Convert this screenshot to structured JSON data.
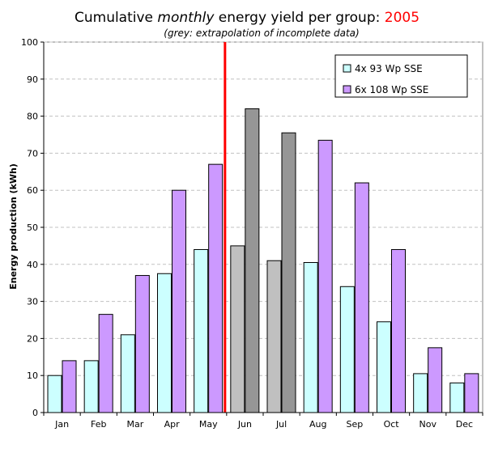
{
  "colors": {
    "series1_fill": "#ccffff",
    "series2_fill": "#cc99ff",
    "extrap1_fill": "#c0c0c0",
    "extrap2_fill": "#969696",
    "marker_line": "#ff0000",
    "year_text": "#ff0000",
    "grid": "#c0c0c0"
  },
  "chart_data": {
    "type": "bar",
    "title_prefix": "Cumulative ",
    "title_italic": "monthly",
    "title_suffix": " energy yield per group: ",
    "title_year": "2005",
    "subtitle": "(grey: extrapolation of incomplete data)",
    "xlabel": "",
    "ylabel": "Energy production (kWh)",
    "ylim": [
      0,
      100
    ],
    "yticks": [
      "0",
      "10",
      "20",
      "30",
      "40",
      "50",
      "60",
      "70",
      "80",
      "90",
      "100"
    ],
    "grid": true,
    "legend_position": "top-right",
    "categories": [
      "Jan",
      "Feb",
      "Mar",
      "Apr",
      "May",
      "Jun",
      "Jul",
      "Aug",
      "Sep",
      "Oct",
      "Nov",
      "Dec"
    ],
    "series": [
      {
        "name": "4x 93 Wp SSE",
        "values": [
          10,
          14,
          21,
          37.5,
          44,
          45,
          41,
          40.5,
          34,
          24.5,
          10.5,
          8
        ]
      },
      {
        "name": "6x 108 Wp SSE",
        "values": [
          14,
          26.5,
          37,
          60,
          67,
          82,
          75.5,
          73.5,
          62,
          44,
          17.5,
          10.5
        ]
      }
    ],
    "extrapolated_categories": [
      "Jun",
      "Jul"
    ],
    "marker_between": [
      "May",
      "Jun"
    ]
  }
}
